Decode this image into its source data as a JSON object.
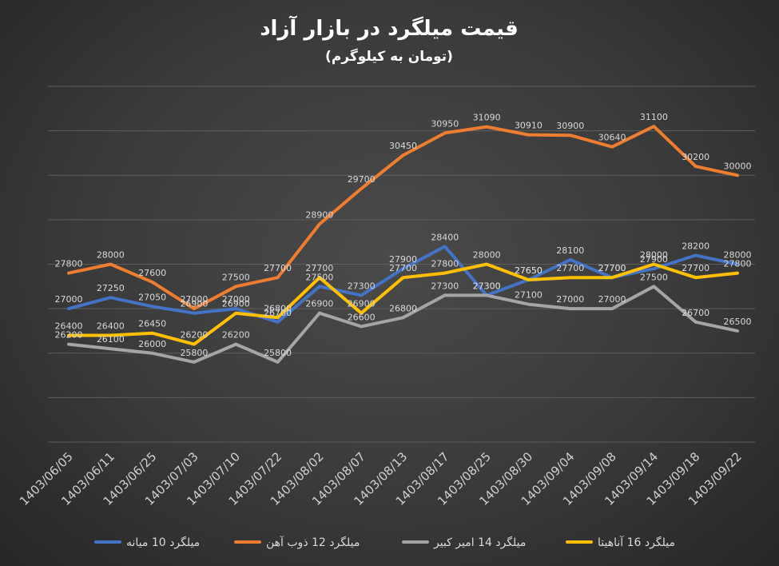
{
  "chart_data": {
    "type": "line",
    "title": "قیمت میلگرد در بازار آزاد",
    "subtitle": "(تومان به کیلوگرم)",
    "categories": [
      "1403/06/05",
      "1403/06/11",
      "1403/06/25",
      "1403/07/03",
      "1403/07/10",
      "1403/07/22",
      "1403/08/02",
      "1403/08/07",
      "1403/08/13",
      "1403/08/17",
      "1403/08/25",
      "1403/08/30",
      "1403/09/04",
      "1403/09/08",
      "1403/09/14",
      "1403/09/18",
      "1403/09/22"
    ],
    "ylim": [
      24000,
      32000
    ],
    "grid": true,
    "legend": "bottom",
    "series": [
      {
        "name": "میلگرد 10 میانه",
        "color": "#4472c4",
        "values": [
          27000,
          27250,
          27050,
          26900,
          27000,
          26700,
          27500,
          27300,
          27900,
          28400,
          27300,
          27650,
          28100,
          27700,
          27900,
          28200,
          28000
        ]
      },
      {
        "name": "میلگرد  12 ذوب آهن",
        "color": "#ed7d31",
        "values": [
          27800,
          28000,
          27600,
          27000,
          27500,
          27700,
          28900,
          29700,
          30450,
          30950,
          31090,
          30910,
          30900,
          30640,
          31100,
          30200,
          30000
        ]
      },
      {
        "name": "میلگرد 14 امیر کبیر",
        "color": "#a5a5a5",
        "values": [
          26200,
          26100,
          26000,
          25800,
          26200,
          25800,
          26900,
          26600,
          26800,
          27300,
          27300,
          27100,
          27000,
          27000,
          27500,
          26700,
          26500
        ]
      },
      {
        "name": "میلگرد 16 آناهیتا",
        "color": "#ffc000",
        "values": [
          26400,
          26400,
          26450,
          26200,
          26900,
          26800,
          27700,
          26900,
          27700,
          27800,
          28000,
          27650,
          27700,
          27700,
          28000,
          27700,
          27800
        ]
      }
    ]
  }
}
